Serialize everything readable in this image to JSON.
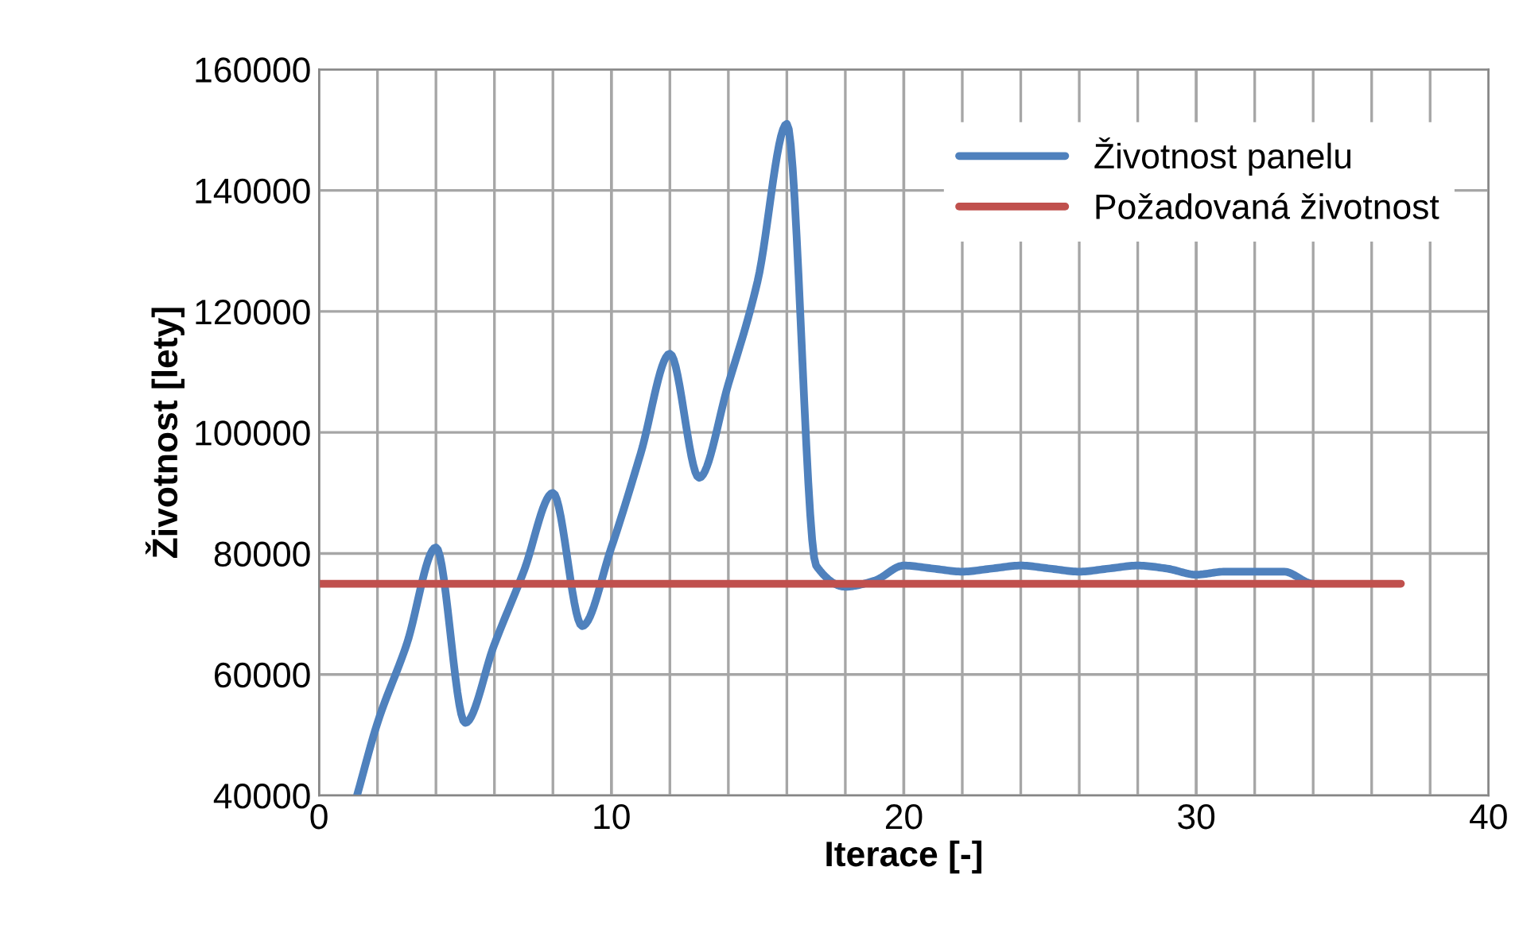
{
  "chart_data": {
    "type": "line",
    "xlabel": "Iterace [-]",
    "ylabel": "Životnost [lety]",
    "xlim": [
      0,
      40
    ],
    "xticks": [
      0,
      10,
      20,
      30,
      40
    ],
    "ylim": [
      40000,
      160000
    ],
    "yticks": [
      40000,
      60000,
      80000,
      100000,
      120000,
      140000,
      160000
    ],
    "grid": true,
    "legend": "top right",
    "line_style": "solid",
    "marker": "none",
    "series": [
      {
        "name": "Životnost panelu",
        "color": "#4f81bd",
        "x": [
          1.3,
          2,
          3,
          4,
          5,
          6,
          7,
          8,
          9,
          10,
          11,
          12,
          13,
          14,
          15,
          16,
          17,
          18,
          19,
          20,
          21,
          22,
          23,
          24,
          25,
          26,
          27,
          28,
          29,
          30,
          31,
          32,
          33,
          34
        ],
        "values": [
          40000,
          52000,
          65000,
          81000,
          52000,
          65000,
          77000,
          90000,
          68000,
          81000,
          96500,
          113000,
          92500,
          108000,
          125000,
          151000,
          78000,
          74500,
          75500,
          78000,
          77500,
          77000,
          77500,
          78000,
          77500,
          77000,
          77500,
          78000,
          77500,
          76500,
          77000,
          77000,
          77000,
          75000
        ]
      },
      {
        "name": "Požadovaná životnost",
        "color": "#c0504d",
        "x": [
          0,
          37
        ],
        "values": [
          75000,
          75000
        ]
      }
    ]
  }
}
